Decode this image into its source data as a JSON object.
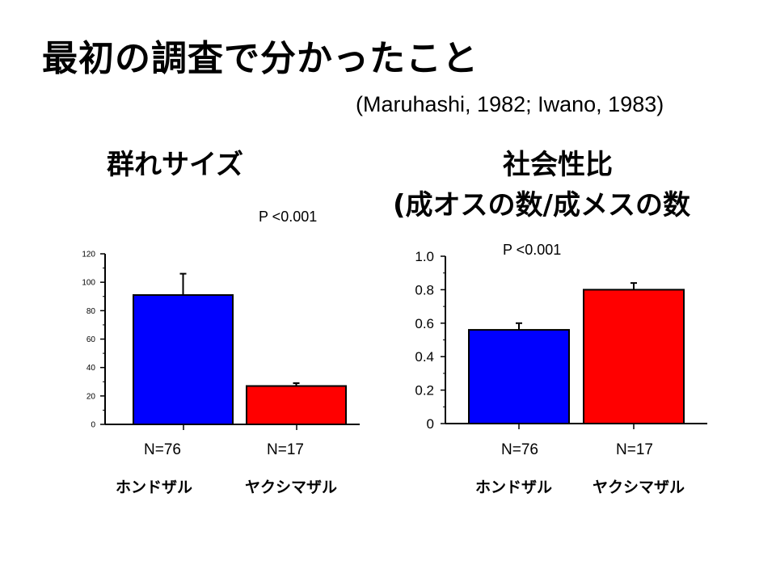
{
  "slide": {
    "title": "最初の調査で分かったこと",
    "citation": "(Maruhashi, 1982; Iwano, 1983)",
    "left_heading": "群れサイズ",
    "right_heading_line1": "社会性比",
    "right_heading_line2": "(成オスの数/成メスの数",
    "left_pvalue": "P <0.001",
    "right_pvalue": "P <0.001"
  },
  "chart_data": [
    {
      "type": "bar",
      "title": "群れサイズ",
      "categories": [
        "ホンドザル",
        "ヤクシマザル"
      ],
      "n_labels": [
        "N=76",
        "N=17"
      ],
      "values": [
        91,
        27
      ],
      "errors": [
        15,
        2
      ],
      "colors": [
        "#0000ff",
        "#ff0000"
      ],
      "ylim": [
        0,
        120
      ],
      "yticks": [
        0,
        20,
        40,
        60,
        80,
        100,
        120
      ],
      "ytick_labels": [
        "0",
        "20",
        "40",
        "60",
        "80",
        "100",
        "120"
      ],
      "annotation": "P <0.001",
      "grid": false
    },
    {
      "type": "bar",
      "title": "社会性比 (成オスの数/成メスの数",
      "categories": [
        "ホンドザル",
        "ヤクシマザル"
      ],
      "n_labels": [
        "N=76",
        "N=17"
      ],
      "values": [
        0.56,
        0.8
      ],
      "errors": [
        0.04,
        0.04
      ],
      "colors": [
        "#0000ff",
        "#ff0000"
      ],
      "ylim": [
        0,
        1.0
      ],
      "yticks": [
        0,
        0.2,
        0.4,
        0.6,
        0.8,
        1.0
      ],
      "ytick_labels": [
        "0",
        "0.2",
        "0.4",
        "0.6",
        "0.8",
        "1.0"
      ],
      "annotation": "P <0.001",
      "grid": false
    }
  ]
}
